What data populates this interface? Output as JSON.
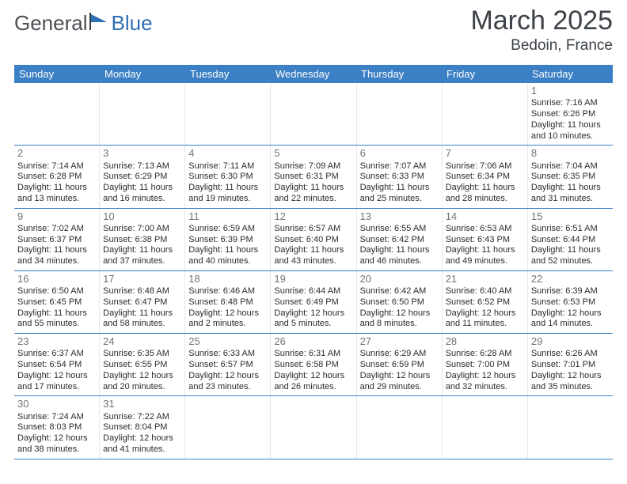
{
  "logo": {
    "general": "General",
    "blue": "Blue"
  },
  "title": "March 2025",
  "location": "Bedoin, France",
  "weekdays": [
    "Sunday",
    "Monday",
    "Tuesday",
    "Wednesday",
    "Thursday",
    "Friday",
    "Saturday"
  ],
  "colors": {
    "header_blue": "#3b7fc4",
    "brand_blue": "#2e6eb5",
    "text": "#2a2c2e",
    "daynum": "#6e7478"
  },
  "weeks": [
    [
      {
        "empty": true
      },
      {
        "empty": true
      },
      {
        "empty": true
      },
      {
        "empty": true
      },
      {
        "empty": true
      },
      {
        "empty": true
      },
      {
        "day": "1",
        "sunrise": "Sunrise: 7:16 AM",
        "sunset": "Sunset: 6:26 PM",
        "dl1": "Daylight: 11 hours",
        "dl2": "and 10 minutes."
      }
    ],
    [
      {
        "day": "2",
        "sunrise": "Sunrise: 7:14 AM",
        "sunset": "Sunset: 6:28 PM",
        "dl1": "Daylight: 11 hours",
        "dl2": "and 13 minutes."
      },
      {
        "day": "3",
        "sunrise": "Sunrise: 7:13 AM",
        "sunset": "Sunset: 6:29 PM",
        "dl1": "Daylight: 11 hours",
        "dl2": "and 16 minutes."
      },
      {
        "day": "4",
        "sunrise": "Sunrise: 7:11 AM",
        "sunset": "Sunset: 6:30 PM",
        "dl1": "Daylight: 11 hours",
        "dl2": "and 19 minutes."
      },
      {
        "day": "5",
        "sunrise": "Sunrise: 7:09 AM",
        "sunset": "Sunset: 6:31 PM",
        "dl1": "Daylight: 11 hours",
        "dl2": "and 22 minutes."
      },
      {
        "day": "6",
        "sunrise": "Sunrise: 7:07 AM",
        "sunset": "Sunset: 6:33 PM",
        "dl1": "Daylight: 11 hours",
        "dl2": "and 25 minutes."
      },
      {
        "day": "7",
        "sunrise": "Sunrise: 7:06 AM",
        "sunset": "Sunset: 6:34 PM",
        "dl1": "Daylight: 11 hours",
        "dl2": "and 28 minutes."
      },
      {
        "day": "8",
        "sunrise": "Sunrise: 7:04 AM",
        "sunset": "Sunset: 6:35 PM",
        "dl1": "Daylight: 11 hours",
        "dl2": "and 31 minutes."
      }
    ],
    [
      {
        "day": "9",
        "sunrise": "Sunrise: 7:02 AM",
        "sunset": "Sunset: 6:37 PM",
        "dl1": "Daylight: 11 hours",
        "dl2": "and 34 minutes."
      },
      {
        "day": "10",
        "sunrise": "Sunrise: 7:00 AM",
        "sunset": "Sunset: 6:38 PM",
        "dl1": "Daylight: 11 hours",
        "dl2": "and 37 minutes."
      },
      {
        "day": "11",
        "sunrise": "Sunrise: 6:59 AM",
        "sunset": "Sunset: 6:39 PM",
        "dl1": "Daylight: 11 hours",
        "dl2": "and 40 minutes."
      },
      {
        "day": "12",
        "sunrise": "Sunrise: 6:57 AM",
        "sunset": "Sunset: 6:40 PM",
        "dl1": "Daylight: 11 hours",
        "dl2": "and 43 minutes."
      },
      {
        "day": "13",
        "sunrise": "Sunrise: 6:55 AM",
        "sunset": "Sunset: 6:42 PM",
        "dl1": "Daylight: 11 hours",
        "dl2": "and 46 minutes."
      },
      {
        "day": "14",
        "sunrise": "Sunrise: 6:53 AM",
        "sunset": "Sunset: 6:43 PM",
        "dl1": "Daylight: 11 hours",
        "dl2": "and 49 minutes."
      },
      {
        "day": "15",
        "sunrise": "Sunrise: 6:51 AM",
        "sunset": "Sunset: 6:44 PM",
        "dl1": "Daylight: 11 hours",
        "dl2": "and 52 minutes."
      }
    ],
    [
      {
        "day": "16",
        "sunrise": "Sunrise: 6:50 AM",
        "sunset": "Sunset: 6:45 PM",
        "dl1": "Daylight: 11 hours",
        "dl2": "and 55 minutes."
      },
      {
        "day": "17",
        "sunrise": "Sunrise: 6:48 AM",
        "sunset": "Sunset: 6:47 PM",
        "dl1": "Daylight: 11 hours",
        "dl2": "and 58 minutes."
      },
      {
        "day": "18",
        "sunrise": "Sunrise: 6:46 AM",
        "sunset": "Sunset: 6:48 PM",
        "dl1": "Daylight: 12 hours",
        "dl2": "and 2 minutes."
      },
      {
        "day": "19",
        "sunrise": "Sunrise: 6:44 AM",
        "sunset": "Sunset: 6:49 PM",
        "dl1": "Daylight: 12 hours",
        "dl2": "and 5 minutes."
      },
      {
        "day": "20",
        "sunrise": "Sunrise: 6:42 AM",
        "sunset": "Sunset: 6:50 PM",
        "dl1": "Daylight: 12 hours",
        "dl2": "and 8 minutes."
      },
      {
        "day": "21",
        "sunrise": "Sunrise: 6:40 AM",
        "sunset": "Sunset: 6:52 PM",
        "dl1": "Daylight: 12 hours",
        "dl2": "and 11 minutes."
      },
      {
        "day": "22",
        "sunrise": "Sunrise: 6:39 AM",
        "sunset": "Sunset: 6:53 PM",
        "dl1": "Daylight: 12 hours",
        "dl2": "and 14 minutes."
      }
    ],
    [
      {
        "day": "23",
        "sunrise": "Sunrise: 6:37 AM",
        "sunset": "Sunset: 6:54 PM",
        "dl1": "Daylight: 12 hours",
        "dl2": "and 17 minutes."
      },
      {
        "day": "24",
        "sunrise": "Sunrise: 6:35 AM",
        "sunset": "Sunset: 6:55 PM",
        "dl1": "Daylight: 12 hours",
        "dl2": "and 20 minutes."
      },
      {
        "day": "25",
        "sunrise": "Sunrise: 6:33 AM",
        "sunset": "Sunset: 6:57 PM",
        "dl1": "Daylight: 12 hours",
        "dl2": "and 23 minutes."
      },
      {
        "day": "26",
        "sunrise": "Sunrise: 6:31 AM",
        "sunset": "Sunset: 6:58 PM",
        "dl1": "Daylight: 12 hours",
        "dl2": "and 26 minutes."
      },
      {
        "day": "27",
        "sunrise": "Sunrise: 6:29 AM",
        "sunset": "Sunset: 6:59 PM",
        "dl1": "Daylight: 12 hours",
        "dl2": "and 29 minutes."
      },
      {
        "day": "28",
        "sunrise": "Sunrise: 6:28 AM",
        "sunset": "Sunset: 7:00 PM",
        "dl1": "Daylight: 12 hours",
        "dl2": "and 32 minutes."
      },
      {
        "day": "29",
        "sunrise": "Sunrise: 6:26 AM",
        "sunset": "Sunset: 7:01 PM",
        "dl1": "Daylight: 12 hours",
        "dl2": "and 35 minutes."
      }
    ],
    [
      {
        "day": "30",
        "sunrise": "Sunrise: 7:24 AM",
        "sunset": "Sunset: 8:03 PM",
        "dl1": "Daylight: 12 hours",
        "dl2": "and 38 minutes."
      },
      {
        "day": "31",
        "sunrise": "Sunrise: 7:22 AM",
        "sunset": "Sunset: 8:04 PM",
        "dl1": "Daylight: 12 hours",
        "dl2": "and 41 minutes."
      },
      {
        "empty": true
      },
      {
        "empty": true
      },
      {
        "empty": true
      },
      {
        "empty": true
      },
      {
        "empty": true
      }
    ]
  ]
}
